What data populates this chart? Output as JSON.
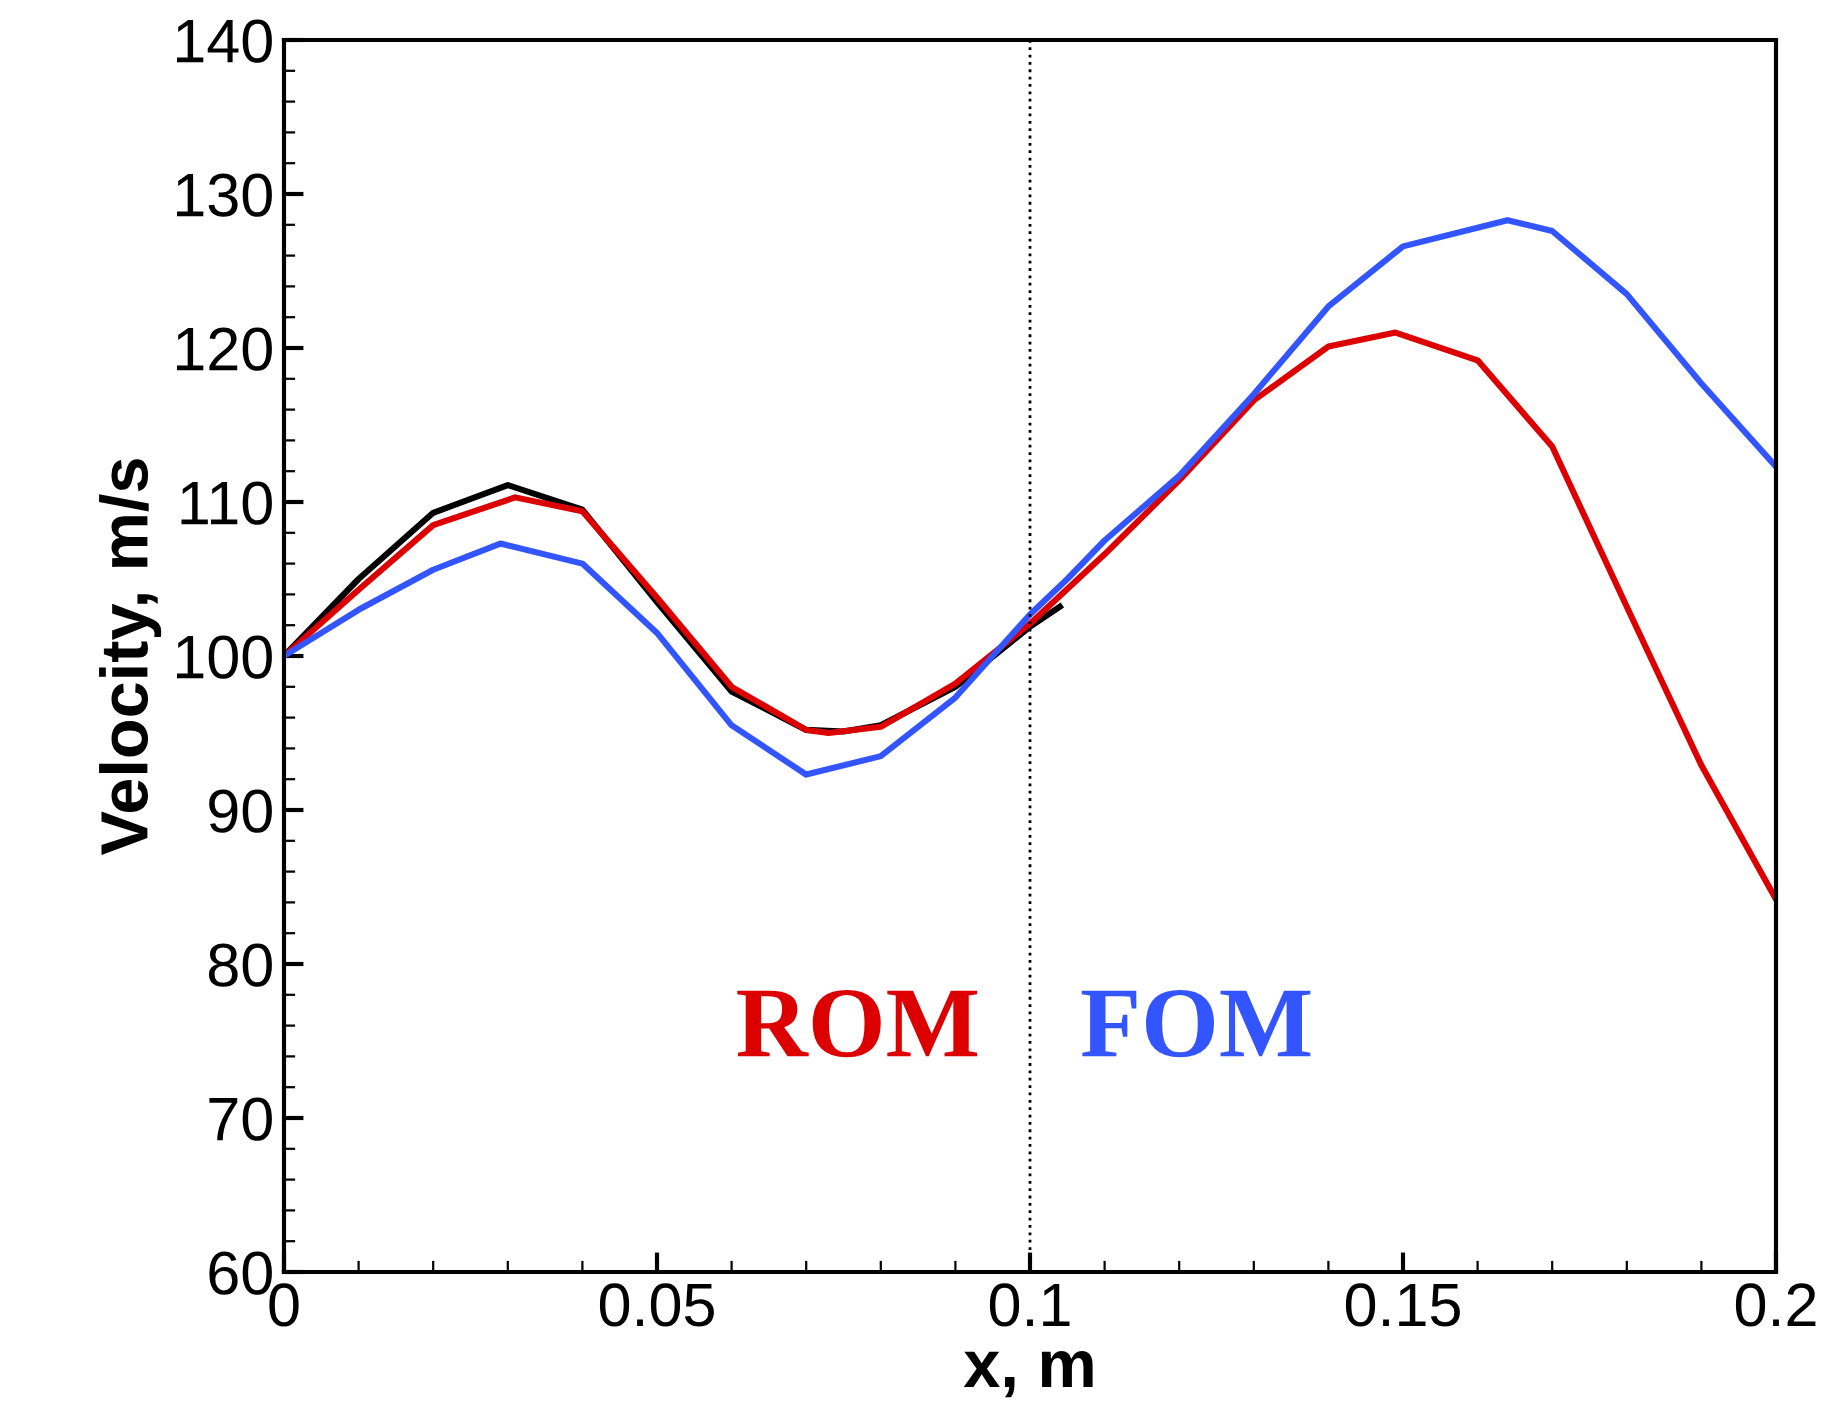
{
  "chart_data": {
    "type": "line",
    "xlabel": "x, m",
    "ylabel": "Velocity, m/s",
    "xlim": [
      0,
      0.2
    ],
    "xticks": [
      0,
      0.05,
      0.1,
      0.15,
      0.2
    ],
    "ylim": [
      60,
      140
    ],
    "yticks": [
      60,
      70,
      80,
      90,
      100,
      110,
      120,
      130,
      140
    ],
    "grid": false,
    "legend": false,
    "marker": "none",
    "line_style": "solid",
    "ref_lines": [
      {
        "axis": "x",
        "value": 0.1,
        "color": "#000000",
        "line_style": "dotted"
      }
    ],
    "series": [
      {
        "color": "#000000",
        "x": [
          0,
          0.01,
          0.02,
          0.03,
          0.04,
          0.05,
          0.06,
          0.07,
          0.075,
          0.08,
          0.09,
          0.1,
          0.104
        ],
        "values": [
          100,
          105,
          109.3,
          111.1,
          109.5,
          103.5,
          97.7,
          95.2,
          95.1,
          95.5,
          98.0,
          101.9,
          103.2
        ]
      },
      {
        "name": "ROM",
        "color": "#dd0000",
        "x": [
          0,
          0.01,
          0.02,
          0.031,
          0.04,
          0.05,
          0.06,
          0.07,
          0.073,
          0.08,
          0.09,
          0.1,
          0.11,
          0.12,
          0.13,
          0.14,
          0.149,
          0.16,
          0.17,
          0.18,
          0.19,
          0.2
        ],
        "values": [
          100,
          104.3,
          108.5,
          110.3,
          109.4,
          103.8,
          98,
          95.2,
          95.0,
          95.4,
          98.2,
          102.1,
          106.6,
          111.4,
          116.6,
          120.1,
          121.0,
          119.2,
          113.6,
          103.2,
          92.9,
          84.2
        ]
      },
      {
        "name": "FOM",
        "color": "#3355ff",
        "x": [
          0,
          0.01,
          0.02,
          0.029,
          0.04,
          0.05,
          0.06,
          0.07,
          0.08,
          0.09,
          0.1,
          0.105,
          0.11,
          0.12,
          0.13,
          0.14,
          0.15,
          0.164,
          0.17,
          0.18,
          0.19,
          0.2
        ],
        "values": [
          100,
          103,
          105.6,
          107.3,
          106,
          101.5,
          95.5,
          92.3,
          93.5,
          97.3,
          102.7,
          105,
          107.5,
          111.7,
          117,
          122.7,
          126.6,
          128.3,
          127.6,
          123.5,
          117.7,
          112.3
        ]
      }
    ]
  }
}
